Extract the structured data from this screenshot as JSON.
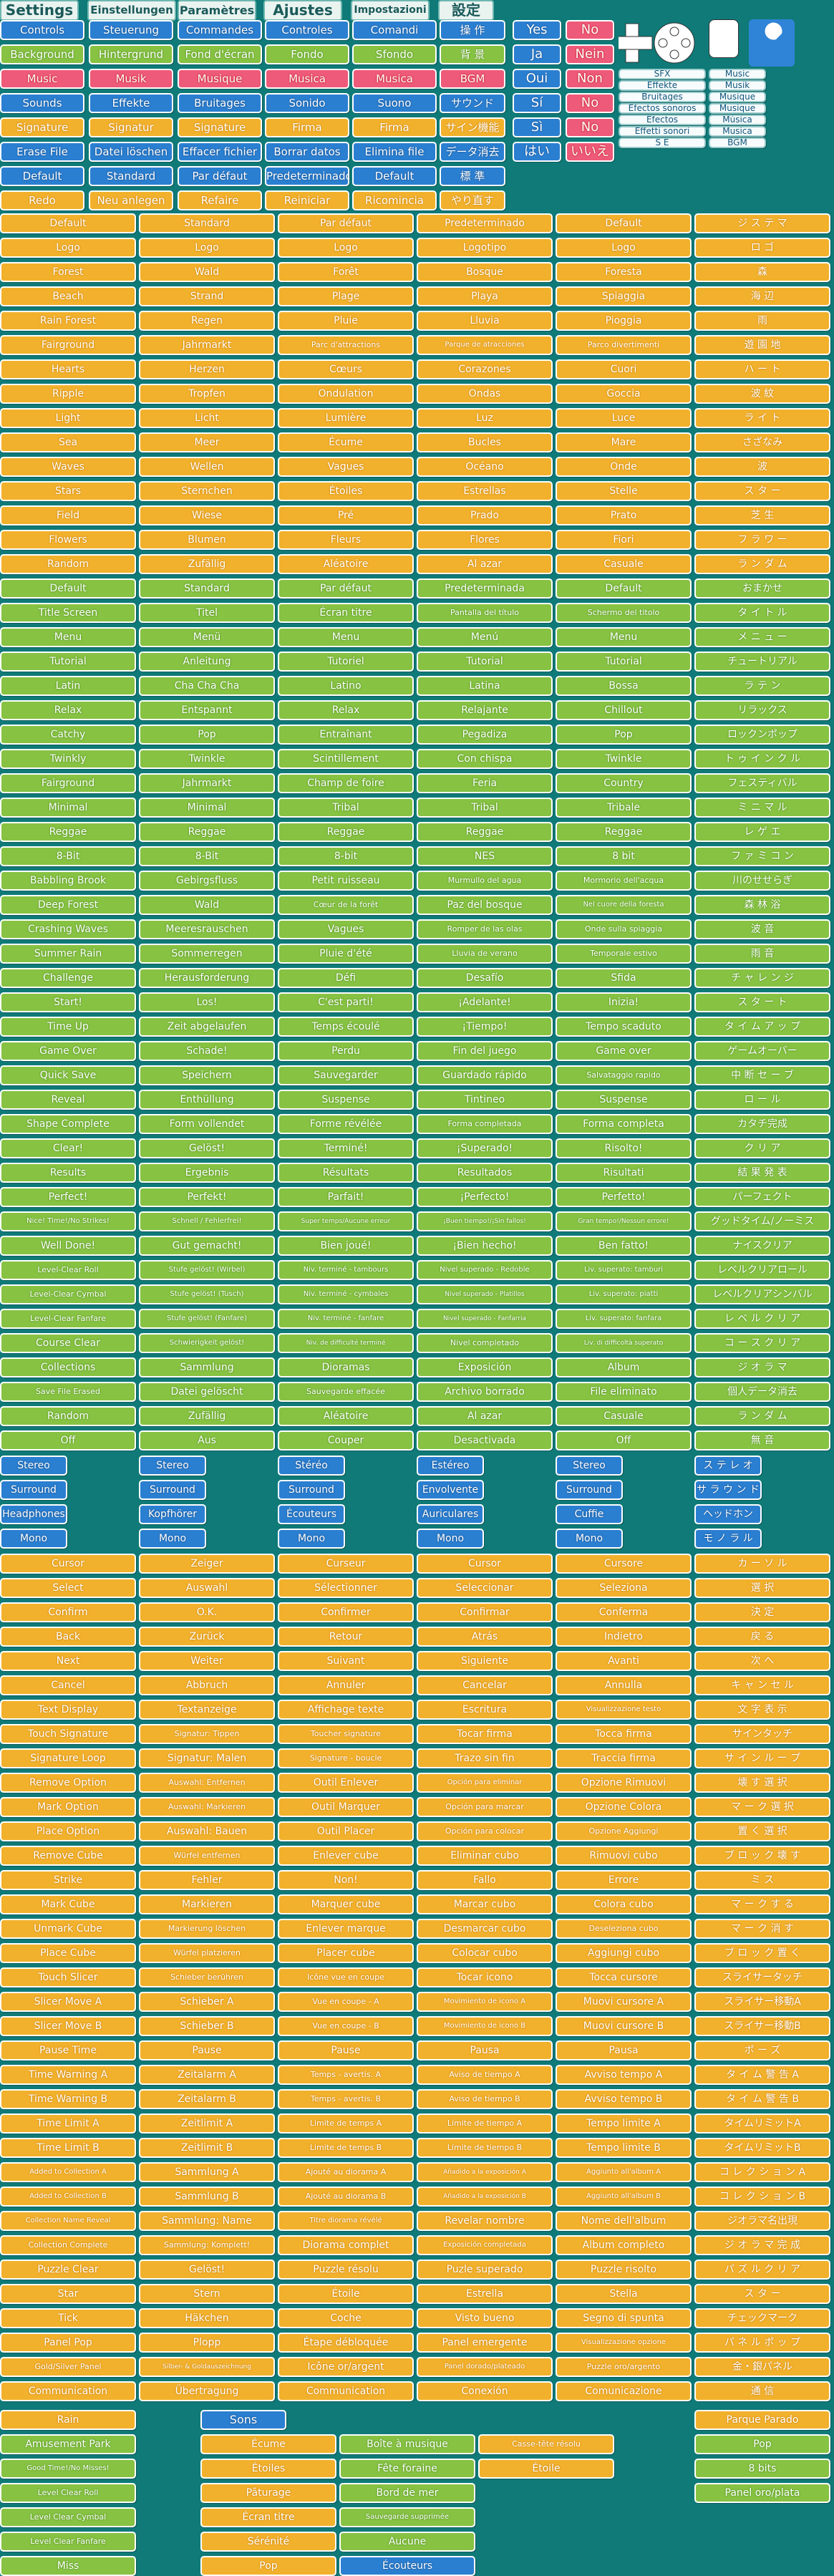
{
  "tabs": [
    "Settings",
    "Einstellungen",
    "Paramètres",
    "Ajustes",
    "Impostazioni",
    "設定"
  ],
  "top_rows": [
    {
      "style": "b",
      "items": [
        "Controls",
        "Steuerung",
        "Commandes",
        "Controles",
        "Comandi",
        "操 作"
      ]
    },
    {
      "style": "g",
      "items": [
        "Background",
        "Hintergrund",
        "Fond d'écran",
        "Fondo",
        "Sfondo",
        "背 景"
      ]
    },
    {
      "style": "p",
      "items": [
        "Music",
        "Musik",
        "Musique",
        "Musica",
        "Musica",
        "BGM"
      ]
    },
    {
      "style": "b",
      "items": [
        "Sounds",
        "Effekte",
        "Bruitages",
        "Sonido",
        "Suono",
        "サウンド"
      ]
    },
    {
      "style": "o",
      "items": [
        "Signature",
        "Signatur",
        "Signature",
        "Firma",
        "Firma",
        "サイン機能"
      ]
    },
    {
      "style": "b",
      "items": [
        "Erase File",
        "Datei löschen",
        "Effacer fichier",
        "Borrar datos",
        "Elimina file",
        "データ消去"
      ]
    },
    {
      "style": "b",
      "items": [
        "Default",
        "Standard",
        "Par défaut",
        "Predeterminado",
        "Default",
        "標 準"
      ]
    },
    {
      "style": "o",
      "items": [
        "Redo",
        "Neu anlegen",
        "Refaire",
        "Reiniciar",
        "Ricomincia",
        "やり直す"
      ]
    }
  ],
  "yesno": [
    [
      "Yes",
      "No"
    ],
    [
      "Ja",
      "Nein"
    ],
    [
      "Oui",
      "Non"
    ],
    [
      "Sí",
      "No"
    ],
    [
      "Sì",
      "No"
    ],
    [
      "はい",
      "いいえ"
    ]
  ],
  "sfx_labels": [
    "SFX",
    "Effekte",
    "Bruitages",
    "Efectos sonoros",
    "Efectos",
    "Effetti sonori",
    "S E"
  ],
  "music_labels": [
    "Music",
    "Musik",
    "Musique",
    "Musique",
    "Música",
    "Musica",
    "BGM"
  ],
  "main_grid": [
    {
      "style": "o",
      "items": [
        "Default",
        "Standard",
        "Par défaut",
        "Predeterminado",
        "Default",
        "ジ ス テ マ"
      ]
    },
    {
      "style": "o",
      "items": [
        "Logo",
        "Logo",
        "Logo",
        "Logotipo",
        "Logo",
        "ロ ゴ"
      ]
    },
    {
      "style": "o",
      "items": [
        "Forest",
        "Wald",
        "Forêt",
        "Bosque",
        "Foresta",
        "森"
      ]
    },
    {
      "style": "o",
      "items": [
        "Beach",
        "Strand",
        "Plage",
        "Playa",
        "Spiaggia",
        "海 辺"
      ]
    },
    {
      "style": "o",
      "items": [
        "Rain Forest",
        "Regen",
        "Pluie",
        "Lluvia",
        "Pioggia",
        "雨"
      ]
    },
    {
      "style": "o",
      "items": [
        "Fairground",
        "Jahrmarkt",
        "Parc d'attractions",
        "Parque de atracciones",
        "Parco divertimenti",
        "遊 園 地"
      ]
    },
    {
      "style": "o",
      "items": [
        "Hearts",
        "Herzen",
        "Cœurs",
        "Corazones",
        "Cuori",
        "ハ ー ト"
      ]
    },
    {
      "style": "o",
      "items": [
        "Ripple",
        "Tropfen",
        "Ondulation",
        "Ondas",
        "Goccia",
        "波 紋"
      ]
    },
    {
      "style": "o",
      "items": [
        "Light",
        "Licht",
        "Lumière",
        "Luz",
        "Luce",
        "ラ イ ト"
      ]
    },
    {
      "style": "o",
      "items": [
        "Sea",
        "Meer",
        "Écume",
        "Bucles",
        "Mare",
        "さざなみ"
      ]
    },
    {
      "style": "o",
      "items": [
        "Waves",
        "Wellen",
        "Vagues",
        "Océano",
        "Onde",
        "波"
      ]
    },
    {
      "style": "o",
      "items": [
        "Stars",
        "Sternchen",
        "Étoiles",
        "Estrellas",
        "Stelle",
        "ス タ ー"
      ]
    },
    {
      "style": "o",
      "items": [
        "Field",
        "Wiese",
        "Pré",
        "Prado",
        "Prato",
        "芝 生"
      ]
    },
    {
      "style": "o",
      "items": [
        "Flowers",
        "Blumen",
        "Fleurs",
        "Flores",
        "Fiori",
        "フ ラ ワ ー"
      ]
    },
    {
      "style": "o",
      "items": [
        "Random",
        "Zufällig",
        "Aléatoire",
        "Al azar",
        "Casuale",
        "ラ ン ダ ム"
      ]
    },
    {
      "style": "g",
      "items": [
        "Default",
        "Standard",
        "Par défaut",
        "Predeterminada",
        "Default",
        "おまかせ"
      ]
    },
    {
      "style": "g",
      "items": [
        "Title Screen",
        "Titel",
        "Écran titre",
        "Pantalla del título",
        "Schermo del titolo",
        "タ イ ト ル"
      ]
    },
    {
      "style": "g",
      "items": [
        "Menu",
        "Menü",
        "Menu",
        "Menú",
        "Menu",
        "メ ニ ュ ー"
      ]
    },
    {
      "style": "g",
      "items": [
        "Tutorial",
        "Anleitung",
        "Tutoriel",
        "Tutorial",
        "Tutorial",
        "チュートリアル"
      ]
    },
    {
      "style": "g",
      "items": [
        "Latin",
        "Cha Cha Cha",
        "Latino",
        "Latina",
        "Bossa",
        "ラ テ ン"
      ]
    },
    {
      "style": "g",
      "items": [
        "Relax",
        "Entspannt",
        "Relax",
        "Relajante",
        "Chillout",
        "リラックス"
      ]
    },
    {
      "style": "g",
      "items": [
        "Catchy",
        "Pop",
        "Entraînant",
        "Pegadiza",
        "Pop",
        "ロックンポップ"
      ]
    },
    {
      "style": "g",
      "items": [
        "Twinkly",
        "Twinkle",
        "Scintillement",
        "Con chispa",
        "Twinkle",
        "ト ゥ イ ン ク ル"
      ]
    },
    {
      "style": "g",
      "items": [
        "Fairground",
        "Jahrmarkt",
        "Champ de foire",
        "Feria",
        "Country",
        "フェスティバル"
      ]
    },
    {
      "style": "g",
      "items": [
        "Minimal",
        "Minimal",
        "Tribal",
        "Tribal",
        "Tribale",
        "ミ ニ マ ル"
      ]
    },
    {
      "style": "g",
      "items": [
        "Reggae",
        "Reggae",
        "Reggae",
        "Reggae",
        "Reggae",
        "レ ゲ エ"
      ]
    },
    {
      "style": "g",
      "items": [
        "8-Bit",
        "8-Bit",
        "8-bit",
        "NES",
        "8 bit",
        "フ ァ ミ コ ン"
      ]
    },
    {
      "style": "g",
      "items": [
        "Babbling Brook",
        "Gebirgsfluss",
        "Petit ruisseau",
        "Murmullo del agua",
        "Mormorio dell'acqua",
        "川のせせらぎ"
      ]
    },
    {
      "style": "g",
      "items": [
        "Deep Forest",
        "Wald",
        "Cœur de la forêt",
        "Paz del bosque",
        "Nel cuore della foresta",
        "森 林 浴"
      ]
    },
    {
      "style": "g",
      "items": [
        "Crashing Waves",
        "Meeresrauschen",
        "Vagues",
        "Romper de las olas",
        "Onde sulla spiaggia",
        "波 音"
      ]
    },
    {
      "style": "g",
      "items": [
        "Summer Rain",
        "Sommerregen",
        "Pluie d'été",
        "Lluvia de verano",
        "Temporale estivo",
        "雨 音"
      ]
    },
    {
      "style": "g",
      "items": [
        "Challenge",
        "Herausforderung",
        "Défi",
        "Desafío",
        "Sfida",
        "チ ャ レ ン ジ"
      ]
    },
    {
      "style": "g",
      "items": [
        "Start!",
        "Los!",
        "C'est parti!",
        "¡Adelante!",
        "Inizia!",
        "ス タ ー ト"
      ]
    },
    {
      "style": "g",
      "items": [
        "Time Up",
        "Zeit abgelaufen",
        "Temps écoulé",
        "¡Tiempo!",
        "Tempo scaduto",
        "タ イ ム ア ッ プ"
      ]
    },
    {
      "style": "g",
      "items": [
        "Game Over",
        "Schade!",
        "Perdu",
        "Fin del juego",
        "Game over",
        "ゲームオーバー"
      ]
    },
    {
      "style": "g",
      "items": [
        "Quick Save",
        "Speichern",
        "Sauvegarder",
        "Guardado rápido",
        "Salvataggio rapido",
        "中 断 セ ー ブ"
      ]
    },
    {
      "style": "g",
      "items": [
        "Reveal",
        "Enthüllung",
        "Suspense",
        "Tintineo",
        "Suspense",
        "ロ ー ル"
      ]
    },
    {
      "style": "g",
      "items": [
        "Shape Complete",
        "Form vollendet",
        "Forme révélée",
        "Forma completada",
        "Forma completa",
        "カタチ完成"
      ]
    },
    {
      "style": "g",
      "items": [
        "Clear!",
        "Gelöst!",
        "Terminé!",
        "¡Superado!",
        "Risolto!",
        "ク リ ア"
      ]
    },
    {
      "style": "g",
      "items": [
        "Results",
        "Ergebnis",
        "Résultats",
        "Resultados",
        "Risultati",
        "結 果 発 表"
      ]
    },
    {
      "style": "g",
      "items": [
        "Perfect!",
        "Perfekt!",
        "Parfait!",
        "¡Perfecto!",
        "Perfetto!",
        "パーフェクト"
      ]
    },
    {
      "style": "g",
      "items": [
        "Nice! Time!/No Strikes!",
        "Schnell / Fehlerfrei!",
        "Super temps/Aucune erreur",
        "¡Buen tiempo!/¡Sin fallos!",
        "Gran tempo!/Nessun errore!",
        "グッドタイム/ノーミス"
      ]
    },
    {
      "style": "g",
      "items": [
        "Well Done!",
        "Gut gemacht!",
        "Bien joué!",
        "¡Bien hecho!",
        "Ben fatto!",
        "ナイスクリア"
      ]
    },
    {
      "style": "g",
      "items": [
        "Level-Clear Roll",
        "Stufe gelöst! (Wirbel)",
        "Niv. terminé - tambours",
        "Nivel superado - Redoble",
        "Liv. superato: tamburi",
        "レベルクリアロール"
      ]
    },
    {
      "style": "g",
      "items": [
        "Level-Clear Cymbal",
        "Stufe gelöst! (Tusch)",
        "Niv. terminé - cymbales",
        "Nivel superado - Platillos",
        "Liv. superato: piatti",
        "レベルクリアシンバル"
      ]
    },
    {
      "style": "g",
      "items": [
        "Level-Clear Fanfare",
        "Stufe gelöst! (Fanfare)",
        "Niv. terminé - fanfare",
        "Nivel superado - Fanfarria",
        "Liv. superato: fanfara",
        "レ ベ ル ク リ ア"
      ]
    },
    {
      "style": "g",
      "items": [
        "Course Clear",
        "Schwierigkeit gelöst!",
        "Niv. de difficulté terminé",
        "Nivel completado",
        "Liv. di difficoltà superato",
        "コ ー ス ク リ ア"
      ]
    },
    {
      "style": "g",
      "items": [
        "Collections",
        "Sammlung",
        "Dioramas",
        "Exposición",
        "Album",
        "ジ オ ラ マ"
      ]
    },
    {
      "style": "g",
      "items": [
        "Save File Erased",
        "Datei gelöscht",
        "Sauvegarde effacée",
        "Archivo borrado",
        "File eliminato",
        "個人データ消去"
      ]
    },
    {
      "style": "g",
      "items": [
        "Random",
        "Zufällig",
        "Aléatoire",
        "Al azar",
        "Casuale",
        "ラ ン ダ ム"
      ]
    },
    {
      "style": "g",
      "items": [
        "Off",
        "Aus",
        "Couper",
        "Desactivada",
        "Off",
        "無 音"
      ]
    }
  ],
  "audio_rows": [
    [
      "Stereo",
      "Stereo",
      "Stéréo",
      "Estéreo",
      "Stereo",
      "ス テ レ オ"
    ],
    [
      "Surround",
      "Surround",
      "Surround",
      "Envolvente",
      "Surround",
      "サ ラ ウ ン ド"
    ],
    [
      "Headphones",
      "Kopfhörer",
      "Écouteurs",
      "Auriculares",
      "Cuffie",
      "ヘッドホン"
    ],
    [
      "Mono",
      "Mono",
      "Mono",
      "Mono",
      "Mono",
      "モ ノ ラ ル"
    ]
  ],
  "controls_grid": [
    [
      "Cursor",
      "Zeiger",
      "Curseur",
      "Cursor",
      "Cursore",
      "カ ー ソ ル"
    ],
    [
      "Select",
      "Auswahl",
      "Sélectionner",
      "Seleccionar",
      "Seleziona",
      "選 択"
    ],
    [
      "Confirm",
      "O.K.",
      "Confirmer",
      "Confirmar",
      "Conferma",
      "決 定"
    ],
    [
      "Back",
      "Zurück",
      "Retour",
      "Atrás",
      "Indietro",
      "戻 る"
    ],
    [
      "Next",
      "Weiter",
      "Suivant",
      "Siguiente",
      "Avanti",
      "次 へ"
    ],
    [
      "Cancel",
      "Abbruch",
      "Annuler",
      "Cancelar",
      "Annulla",
      "キ ャ ン セ ル"
    ],
    [
      "Text Display",
      "Textanzeige",
      "Affichage texte",
      "Escritura",
      "Visualizzazione testo",
      "文 字 表 示"
    ],
    [
      "Touch Signature",
      "Signatur: Tippen",
      "Toucher signature",
      "Tocar firma",
      "Tocca firma",
      "サインタッチ"
    ],
    [
      "Signature Loop",
      "Signatur: Malen",
      "Signature - boucle",
      "Trazo sin fin",
      "Traccia firma",
      "サ イ ン ル ー プ"
    ],
    [
      "Remove Option",
      "Auswahl: Entfernen",
      "Outil Enlever",
      "Opción para eliminar",
      "Opzione Rimuovi",
      "壊 す 選 択"
    ],
    [
      "Mark Option",
      "Auswahl: Markieren",
      "Outil Marquer",
      "Opción para marcar",
      "Opzione Colora",
      "マ ー ク 選 択"
    ],
    [
      "Place Option",
      "Auswahl: Bauen",
      "Outil Placer",
      "Opción para colocar",
      "Opzione Aggiungi",
      "置 く 選 択"
    ],
    [
      "Remove Cube",
      "Würfel entfernen",
      "Enlever cube",
      "Eliminar cubo",
      "Rimuovi cubo",
      "ブ ロ ッ ク 壊 す"
    ],
    [
      "Strike",
      "Fehler",
      "Non!",
      "Fallo",
      "Errore",
      "ミ ス"
    ],
    [
      "Mark Cube",
      "Markieren",
      "Marquer cube",
      "Marcar cubo",
      "Colora cubo",
      "マ ー ク す る"
    ],
    [
      "Unmark Cube",
      "Markierung löschen",
      "Enlever marque",
      "Desmarcar cubo",
      "Deseleziona cubo",
      "マ ー ク 消 す"
    ],
    [
      "Place Cube",
      "Würfel platzieren",
      "Placer cube",
      "Colocar cubo",
      "Aggiungi cubo",
      "ブ ロ ッ ク 置 く"
    ],
    [
      "Touch Slicer",
      "Schieber berühren",
      "Icône vue en coupe",
      "Tocar icono",
      "Tocca cursore",
      "スライサータッチ"
    ],
    [
      "Slicer Move A",
      "Schieber A",
      "Vue en coupe - A",
      "Movimiento de icono A",
      "Muovi cursore A",
      "スライサー移動A"
    ],
    [
      "Slicer Move B",
      "Schieber B",
      "Vue en coupe - B",
      "Movimiento de icono B",
      "Muovi cursore B",
      "スライサー移動B"
    ],
    [
      "Pause Time",
      "Pause",
      "Pause",
      "Pausa",
      "Pausa",
      "ポ ー ズ"
    ],
    [
      "Time Warning A",
      "Zeitalarm A",
      "Temps - avertis. A",
      "Aviso de tiempo A",
      "Avviso tempo A",
      "タ イ ム 警 告 A"
    ],
    [
      "Time Warning B",
      "Zeitalarm B",
      "Temps - avertis. B",
      "Aviso de tiempo B",
      "Avviso tempo B",
      "タ イ ム 警 告 B"
    ],
    [
      "Time Limit A",
      "Zeitlimit A",
      "Limite de temps A",
      "Límite de tiempo A",
      "Tempo limite A",
      "タイムリミットA"
    ],
    [
      "Time Limit B",
      "Zeitlimit B",
      "Limite de temps B",
      "Límite de tiempo B",
      "Tempo limite B",
      "タイムリミットB"
    ],
    [
      "Added to Collection A",
      "Sammlung A",
      "Ajouté au diorama A",
      "Añadido a la exposición A",
      "Aggiunto all'album A",
      "コ レ ク シ ョ ン A"
    ],
    [
      "Added to Collection B",
      "Sammlung B",
      "Ajouté au diorama B",
      "Añadido a la exposición B",
      "Aggiunto all'album B",
      "コ レ ク シ ョ ン B"
    ],
    [
      "Collection Name Reveal",
      "Sammlung: Name",
      "Titre diorama révélé",
      "Revelar nombre",
      "Nome dell'album",
      "ジオラマ名出現"
    ],
    [
      "Collection Complete",
      "Sammlung: Komplett!",
      "Diorama complet",
      "Exposición completada",
      "Album completo",
      "ジ オ ラ マ 完 成"
    ],
    [
      "Puzzle Clear",
      "Gelöst!",
      "Puzzle résolu",
      "Puzle superado",
      "Puzzle risolto",
      "パ ズ ル ク リ ア"
    ],
    [
      "Star",
      "Stern",
      "Étoile",
      "Estrella",
      "Stella",
      "ス タ ー"
    ],
    [
      "Tick",
      "Häkchen",
      "Coche",
      "Visto bueno",
      "Segno di spunta",
      "チェックマーク"
    ],
    [
      "Panel Pop",
      "Plopp",
      "Étape débloquée",
      "Panel emergente",
      "Visualizzazione opzione",
      "パ ネ ル ポ ッ プ"
    ],
    [
      "Gold/Silver Panel",
      "Silber- & Goldauszeichnung",
      "Icône or/argent",
      "Panel dorado/plateado",
      "Puzzle oro/argento",
      "金・銀パネル"
    ],
    [
      "Communication",
      "Übertragung",
      "Communication",
      "Conexión",
      "Comunicazione",
      "通 信"
    ]
  ],
  "bottom_left": [
    "Rain",
    "Amusement Park",
    "Good Time!/No Misses!",
    "Level Clear Roll",
    "Level Clear Cymbal",
    "Level Clear Fanfare",
    "Miss"
  ],
  "sons_title": "Sons",
  "sons_col1": [
    "Écume",
    "Étoiles",
    "Pâturage",
    "Écran titre",
    "Sérénité",
    "Pop"
  ],
  "sons_col2": [
    "Boîte à musique",
    "Fête foraine",
    "Bord de mer",
    "Sauvegarde supprimée",
    "Aucune",
    "Écouteurs"
  ],
  "sons_col3": [
    "Casse-tête résolu",
    "Étoile"
  ],
  "bottom_right": [
    "Parque Parado",
    "Pop",
    "8 bits",
    "Panel oro/plata"
  ]
}
